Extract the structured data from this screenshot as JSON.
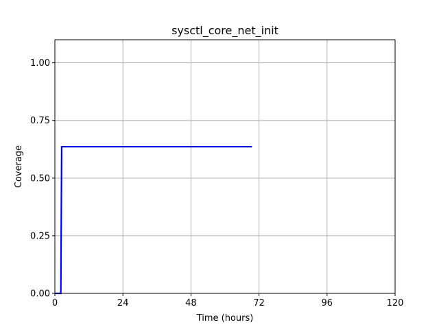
{
  "chart_data": {
    "type": "line",
    "title": "sysctl_core_net_init",
    "xlabel": "Time (hours)",
    "ylabel": "Coverage",
    "xlim": [
      0,
      120
    ],
    "ylim": [
      0,
      1.1
    ],
    "xticks": [
      0,
      24,
      48,
      72,
      96,
      120
    ],
    "xtick_labels": [
      "0",
      "24",
      "48",
      "72",
      "96",
      "120"
    ],
    "yticks": [
      0,
      0.25,
      0.5,
      0.75,
      1.0
    ],
    "ytick_labels": [
      "0.00",
      "0.25",
      "0.50",
      "0.75",
      "1.00"
    ],
    "grid": true,
    "series": [
      {
        "color": "#0000dd",
        "x": [
          0,
          2.1,
          2.4,
          69.5
        ],
        "y": [
          0,
          0,
          0.636,
          0.636
        ]
      }
    ]
  }
}
